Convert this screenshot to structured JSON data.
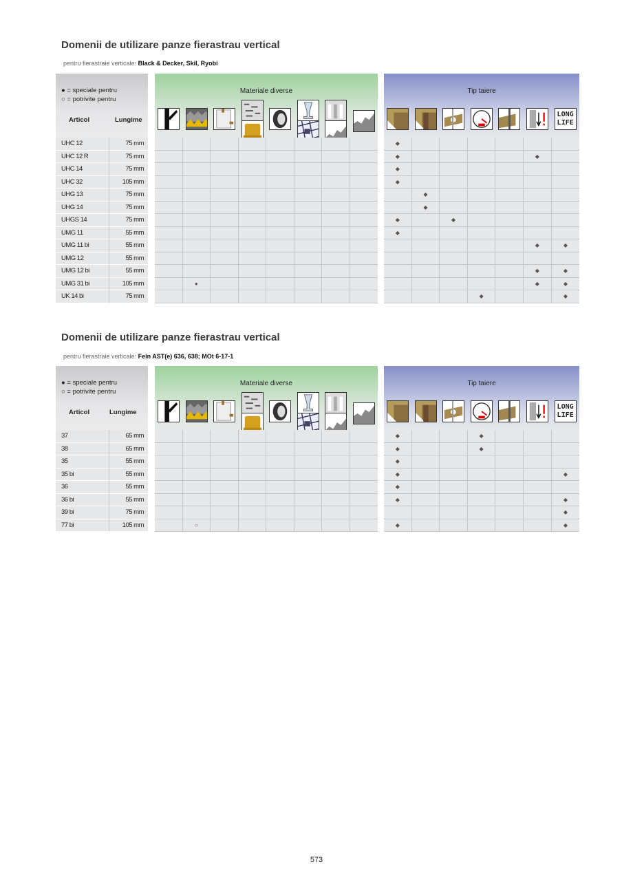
{
  "page_number": "573",
  "legend": {
    "special_symbol": "●",
    "special_label": "= speciale pentru",
    "suitable_symbol": "○",
    "suitable_label": "= potrivite pentru"
  },
  "columns": {
    "article": "Articol",
    "length": "Lungime",
    "materials": "Materiale diverse",
    "cut_type": "Tip taiere"
  },
  "material_icons": [
    [
      "tree-branch-icon"
    ],
    [
      "roofing-insulation-icon"
    ],
    [
      "plasterboard-icon"
    ],
    [
      "aerated-concrete-icon",
      "mineral-wool-icon"
    ],
    [
      "tire-rubber-icon"
    ],
    [
      "glass-icon",
      "tiles-icon"
    ],
    [
      "plastic-profile-icon",
      "corrugated-sheet-icon"
    ],
    [
      "corrugated-fibre-cement-icon"
    ]
  ],
  "cut_icons": [
    "straight-cut-icon",
    "clean-cut-icon",
    "curve-cut-icon",
    "speed-icon",
    "thick-material-icon",
    "caution-icon",
    "long-life-icon"
  ],
  "long_life_text": [
    "LONG",
    "LIFE"
  ],
  "tables": [
    {
      "title": "Domenii de utilizare panze fierastrau vertical",
      "subtitle_prefix": "pentru fierastraie verticale:",
      "subtitle_brands": "Black & Decker, Skil, Ryobi",
      "rows": [
        {
          "article": "UHC 12",
          "length": "75 mm",
          "materials": [
            "",
            "",
            "",
            "",
            "",
            "",
            "",
            ""
          ],
          "cut": [
            "◆",
            "",
            "",
            "",
            "",
            "",
            ""
          ]
        },
        {
          "article": "UHC 12 R",
          "length": "75 mm",
          "materials": [
            "",
            "",
            "",
            "",
            "",
            "",
            "",
            ""
          ],
          "cut": [
            "◆",
            "",
            "",
            "",
            "",
            "◆",
            ""
          ]
        },
        {
          "article": "UHC 14",
          "length": "75 mm",
          "materials": [
            "",
            "",
            "",
            "",
            "",
            "",
            "",
            ""
          ],
          "cut": [
            "◆",
            "",
            "",
            "",
            "",
            "",
            ""
          ]
        },
        {
          "article": "UHC 32",
          "length": "105 mm",
          "materials": [
            "",
            "",
            "",
            "",
            "",
            "",
            "",
            ""
          ],
          "cut": [
            "◆",
            "",
            "",
            "",
            "",
            "",
            ""
          ]
        },
        {
          "article": "UHG 13",
          "length": "75 mm",
          "materials": [
            "",
            "",
            "",
            "",
            "",
            "",
            "",
            ""
          ],
          "cut": [
            "",
            "◆",
            "",
            "",
            "",
            "",
            ""
          ]
        },
        {
          "article": "UHG 14",
          "length": "75 mm",
          "materials": [
            "",
            "",
            "",
            "",
            "",
            "",
            "",
            ""
          ],
          "cut": [
            "",
            "◆",
            "",
            "",
            "",
            "",
            ""
          ]
        },
        {
          "article": "UHGS 14",
          "length": "75 mm",
          "materials": [
            "",
            "",
            "",
            "",
            "",
            "",
            "",
            ""
          ],
          "cut": [
            "◆",
            "",
            "◆",
            "",
            "",
            "",
            ""
          ]
        },
        {
          "article": "UMG 11",
          "length": "55 mm",
          "materials": [
            "",
            "",
            "",
            "",
            "",
            "",
            "",
            ""
          ],
          "cut": [
            "◆",
            "",
            "",
            "",
            "",
            "",
            ""
          ]
        },
        {
          "article": "UMG 11 bi",
          "length": "55 mm",
          "materials": [
            "",
            "",
            "",
            "",
            "",
            "",
            "",
            ""
          ],
          "cut": [
            "",
            "",
            "",
            "",
            "",
            "◆",
            "◆"
          ]
        },
        {
          "article": "UMG 12",
          "length": "55 mm",
          "materials": [
            "",
            "",
            "",
            "",
            "",
            "",
            "",
            ""
          ],
          "cut": [
            "",
            "",
            "",
            "",
            "",
            "",
            ""
          ]
        },
        {
          "article": "UMG 12 bi",
          "length": "55 mm",
          "materials": [
            "",
            "",
            "",
            "",
            "",
            "",
            "",
            ""
          ],
          "cut": [
            "",
            "",
            "",
            "",
            "",
            "◆",
            "◆"
          ]
        },
        {
          "article": "UMG 31 bi",
          "length": "105 mm",
          "materials": [
            "",
            "●",
            "",
            "",
            "",
            "",
            "",
            ""
          ],
          "cut": [
            "",
            "",
            "",
            "",
            "",
            "◆",
            "◆"
          ]
        },
        {
          "article": "UK 14 bi",
          "length": "75 mm",
          "materials": [
            "",
            "",
            "",
            "",
            "",
            "",
            "",
            ""
          ],
          "cut": [
            "",
            "",
            "",
            "◆",
            "",
            "",
            "◆"
          ]
        }
      ]
    },
    {
      "title": "Domenii de utilizare panze fierastrau vertical",
      "subtitle_prefix": "pentru fierastraie verticale:",
      "subtitle_brands": "Fein AST(e) 636, 638; MOt 6-17-1",
      "rows": [
        {
          "article": "37",
          "length": "65 mm",
          "materials": [
            "",
            "",
            "",
            "",
            "",
            "",
            "",
            ""
          ],
          "cut": [
            "◆",
            "",
            "",
            "◆",
            "",
            "",
            ""
          ]
        },
        {
          "article": "38",
          "length": "65 mm",
          "materials": [
            "",
            "",
            "",
            "",
            "",
            "",
            "",
            ""
          ],
          "cut": [
            "◆",
            "",
            "",
            "◆",
            "",
            "",
            ""
          ]
        },
        {
          "article": "35",
          "length": "55 mm",
          "materials": [
            "",
            "",
            "",
            "",
            "",
            "",
            "",
            ""
          ],
          "cut": [
            "◆",
            "",
            "",
            "",
            "",
            "",
            ""
          ]
        },
        {
          "article": "35 bi",
          "length": "55 mm",
          "materials": [
            "",
            "",
            "",
            "",
            "",
            "",
            "",
            ""
          ],
          "cut": [
            "◆",
            "",
            "",
            "",
            "",
            "",
            "◆"
          ]
        },
        {
          "article": "36",
          "length": "55 mm",
          "materials": [
            "",
            "",
            "",
            "",
            "",
            "",
            "",
            ""
          ],
          "cut": [
            "◆",
            "",
            "",
            "",
            "",
            "",
            ""
          ]
        },
        {
          "article": "36 bi",
          "length": "55 mm",
          "materials": [
            "",
            "",
            "",
            "",
            "",
            "",
            "",
            ""
          ],
          "cut": [
            "◆",
            "",
            "",
            "",
            "",
            "",
            "◆"
          ]
        },
        {
          "article": "39 bi",
          "length": "75 mm",
          "materials": [
            "",
            "",
            "",
            "",
            "",
            "",
            "",
            ""
          ],
          "cut": [
            "",
            "",
            "",
            "",
            "",
            "",
            "◆"
          ]
        },
        {
          "article": "77 bi",
          "length": "105 mm",
          "materials": [
            "",
            "○",
            "",
            "",
            "",
            "",
            "",
            ""
          ],
          "cut": [
            "◆",
            "",
            "",
            "",
            "",
            "",
            "◆"
          ]
        }
      ]
    }
  ]
}
